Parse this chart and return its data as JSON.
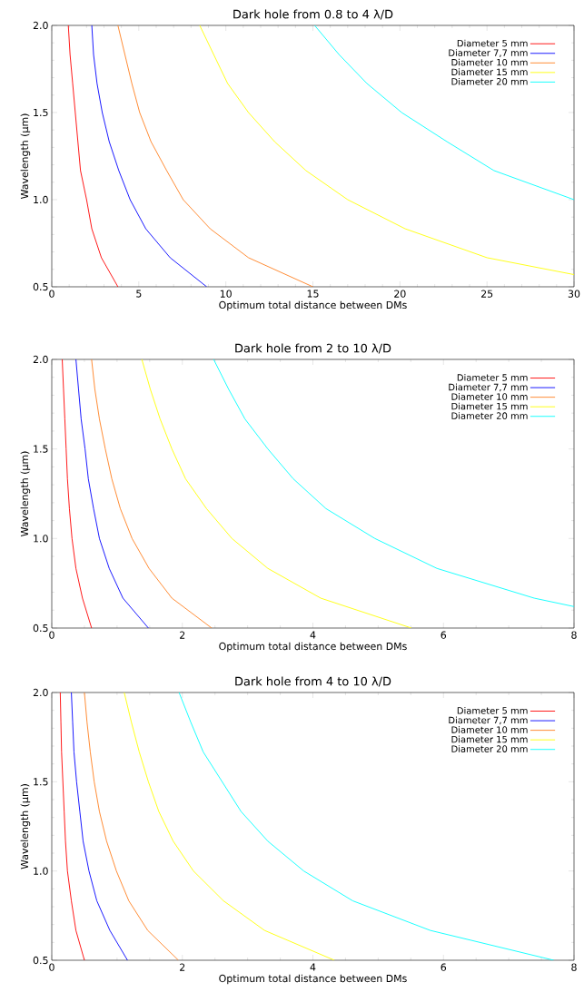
{
  "chart_data": [
    {
      "type": "line",
      "title": "Dark hole from 0.8 to 4 λ/D",
      "xlabel": "Optimum total distance between DMs",
      "ylabel": "Wavelength (μm)",
      "xlim": [
        0,
        30
      ],
      "ylim": [
        0.5,
        2.0
      ],
      "xticks": [
        0,
        5,
        10,
        15,
        20,
        25,
        30
      ],
      "yticks": [
        {
          "value": 0.5,
          "label": "0.5"
        },
        {
          "value": 1.0,
          "label": "1.0"
        },
        {
          "value": 1.5,
          "label": "1.5"
        },
        {
          "value": 2.0,
          "label": "2.0"
        }
      ],
      "legend": "top right",
      "grid": false,
      "marker": "none",
      "line_style": "solid",
      "series": [
        {
          "name": "Diameter 5 mm",
          "color": "#ff0000",
          "x": [
            3.8,
            2.85,
            2.3,
            2.0,
            1.65,
            1.5,
            1.35,
            1.2,
            1.05,
            0.95
          ],
          "values": [
            0.5,
            0.667,
            0.833,
            1.0,
            1.167,
            1.333,
            1.5,
            1.667,
            1.833,
            2.0
          ]
        },
        {
          "name": "Diameter 7,7 mm",
          "color": "#0000ff",
          "x": [
            8.9,
            6.8,
            5.4,
            4.5,
            3.85,
            3.3,
            2.9,
            2.6,
            2.4,
            2.3
          ],
          "values": [
            0.5,
            0.667,
            0.833,
            1.0,
            1.167,
            1.333,
            1.5,
            1.667,
            1.833,
            2.0
          ]
        },
        {
          "name": "Diameter 10 mm",
          "color": "#ff7f1f",
          "x": [
            15.0,
            11.3,
            9.1,
            7.55,
            6.6,
            5.7,
            5.05,
            4.6,
            4.2,
            3.8
          ],
          "values": [
            0.5,
            0.667,
            0.833,
            1.0,
            1.167,
            1.333,
            1.5,
            1.667,
            1.833,
            2.0
          ]
        },
        {
          "name": "Diameter 15 mm",
          "color": "#ffff00",
          "x": [
            30,
            25.0,
            20.3,
            17.0,
            14.6,
            12.8,
            11.3,
            10.1,
            9.3,
            8.5
          ],
          "values": [
            0.57,
            0.667,
            0.833,
            1.0,
            1.167,
            1.333,
            1.5,
            1.667,
            1.833,
            2.0
          ]
        },
        {
          "name": "Diameter 20 mm",
          "color": "#00ffff",
          "x": [
            30,
            25.4,
            22.7,
            20.1,
            18.1,
            16.5,
            15.1
          ],
          "values": [
            1.0,
            1.167,
            1.333,
            1.5,
            1.667,
            1.833,
            2.0
          ]
        }
      ]
    },
    {
      "type": "line",
      "title": "Dark hole from 2 to 10 λ/D",
      "xlabel": "Optimum total distance between DMs",
      "ylabel": "Wavelength (μm)",
      "xlim": [
        0,
        8
      ],
      "ylim": [
        0.5,
        2.0
      ],
      "xticks": [
        0,
        2,
        4,
        6,
        8
      ],
      "yticks": [
        {
          "value": 0.5,
          "label": "0.5"
        },
        {
          "value": 1.0,
          "label": "1.0"
        },
        {
          "value": 1.5,
          "label": "1.5"
        },
        {
          "value": 2.0,
          "label": "2.0"
        }
      ],
      "legend": "top right",
      "grid": false,
      "marker": "none",
      "line_style": "solid",
      "series": [
        {
          "name": "Diameter 5 mm",
          "color": "#ff0000",
          "x": [
            0.61,
            0.47,
            0.37,
            0.31,
            0.27,
            0.24,
            0.22,
            0.2,
            0.18,
            0.16
          ],
          "values": [
            0.5,
            0.667,
            0.833,
            1.0,
            1.167,
            1.333,
            1.5,
            1.667,
            1.833,
            2.0
          ]
        },
        {
          "name": "Diameter 7,7 mm",
          "color": "#0000ff",
          "x": [
            1.48,
            1.09,
            0.88,
            0.73,
            0.64,
            0.56,
            0.51,
            0.45,
            0.41,
            0.37
          ],
          "values": [
            0.5,
            0.667,
            0.833,
            1.0,
            1.167,
            1.333,
            1.5,
            1.667,
            1.833,
            2.0
          ]
        },
        {
          "name": "Diameter 10 mm",
          "color": "#ff7f1f",
          "x": [
            2.45,
            1.84,
            1.49,
            1.23,
            1.05,
            0.92,
            0.82,
            0.73,
            0.66,
            0.61
          ],
          "values": [
            0.5,
            0.667,
            0.833,
            1.0,
            1.167,
            1.333,
            1.5,
            1.667,
            1.833,
            2.0
          ]
        },
        {
          "name": "Diameter 15 mm",
          "color": "#ffff00",
          "x": [
            5.51,
            4.12,
            3.31,
            2.76,
            2.37,
            2.05,
            1.84,
            1.66,
            1.51,
            1.38
          ],
          "values": [
            0.5,
            0.667,
            0.833,
            1.0,
            1.167,
            1.333,
            1.5,
            1.667,
            1.833,
            2.0
          ]
        },
        {
          "name": "Diameter 20 mm",
          "color": "#00ffff",
          "x": [
            8.0,
            7.39,
            5.9,
            4.95,
            4.2,
            3.7,
            3.31,
            2.96,
            2.71,
            2.48
          ],
          "values": [
            0.62,
            0.667,
            0.833,
            1.0,
            1.167,
            1.333,
            1.5,
            1.667,
            1.833,
            2.0
          ]
        }
      ]
    },
    {
      "type": "line",
      "title": "Dark hole from 4 to 10 λ/D",
      "xlabel": "Optimum total distance between DMs",
      "ylabel": "Wavelength (μm)",
      "xlim": [
        0,
        8
      ],
      "ylim": [
        0.5,
        2.0
      ],
      "xticks": [
        0,
        2,
        4,
        6,
        8
      ],
      "yticks": [
        {
          "value": 0.5,
          "label": "0.5"
        },
        {
          "value": 1.0,
          "label": "1.0"
        },
        {
          "value": 1.5,
          "label": "1.5"
        },
        {
          "value": 2.0,
          "label": "2.0"
        }
      ],
      "legend": "top right",
      "grid": false,
      "marker": "none",
      "line_style": "solid",
      "series": [
        {
          "name": "Diameter 5 mm",
          "color": "#ff0000",
          "x": [
            0.5,
            0.37,
            0.3,
            0.24,
            0.21,
            0.19,
            0.17,
            0.15,
            0.14,
            0.13
          ],
          "values": [
            0.5,
            0.667,
            0.833,
            1.0,
            1.167,
            1.333,
            1.5,
            1.667,
            1.833,
            2.0
          ]
        },
        {
          "name": "Diameter 7,7 mm",
          "color": "#0000ff",
          "x": [
            1.16,
            0.89,
            0.69,
            0.57,
            0.48,
            0.43,
            0.38,
            0.34,
            0.32,
            0.3
          ],
          "values": [
            0.5,
            0.667,
            0.833,
            1.0,
            1.167,
            1.333,
            1.5,
            1.667,
            1.833,
            2.0
          ]
        },
        {
          "name": "Diameter 10 mm",
          "color": "#ff7f1f",
          "x": [
            1.94,
            1.47,
            1.18,
            0.99,
            0.84,
            0.73,
            0.65,
            0.59,
            0.54,
            0.5
          ],
          "values": [
            0.5,
            0.667,
            0.833,
            1.0,
            1.167,
            1.333,
            1.5,
            1.667,
            1.833,
            2.0
          ]
        },
        {
          "name": "Diameter 15 mm",
          "color": "#ffff00",
          "x": [
            4.33,
            3.26,
            2.63,
            2.17,
            1.86,
            1.64,
            1.48,
            1.34,
            1.22,
            1.11
          ],
          "values": [
            0.5,
            0.667,
            0.833,
            1.0,
            1.167,
            1.333,
            1.5,
            1.667,
            1.833,
            2.0
          ]
        },
        {
          "name": "Diameter 20 mm",
          "color": "#00ffff",
          "x": [
            7.69,
            5.8,
            4.61,
            3.86,
            3.31,
            2.9,
            2.61,
            2.32,
            2.13,
            1.95
          ],
          "values": [
            0.5,
            0.667,
            0.833,
            1.0,
            1.167,
            1.333,
            1.5,
            1.667,
            1.833,
            2.0
          ]
        }
      ]
    }
  ]
}
